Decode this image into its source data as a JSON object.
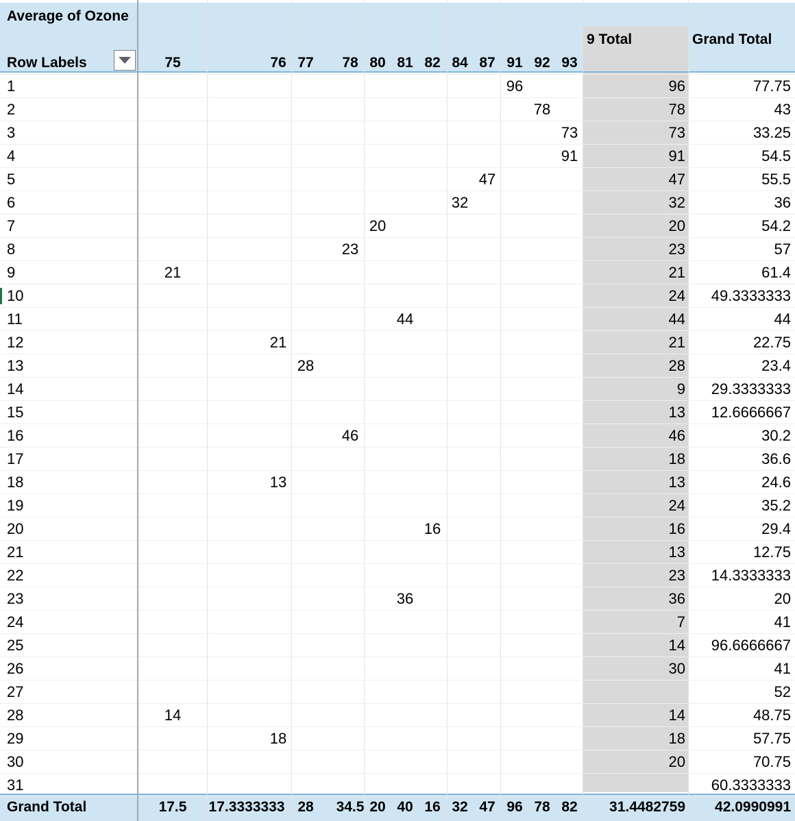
{
  "pivot": {
    "value_field": "Average of Ozone",
    "row_labels": "Row Labels",
    "subtotal_label": "9 Total",
    "grand_total_label": "Grand Total",
    "columns": [
      "75",
      "76",
      "77",
      "78",
      "80",
      "81",
      "82",
      "84",
      "87",
      "91",
      "92",
      "93"
    ],
    "rows": [
      {
        "label": "1",
        "cells": {
          "91": "96"
        },
        "sub": "96",
        "grand": "77.75"
      },
      {
        "label": "2",
        "cells": {
          "92": "78"
        },
        "sub": "78",
        "grand": "43"
      },
      {
        "label": "3",
        "cells": {
          "93": "73"
        },
        "sub": "73",
        "grand": "33.25"
      },
      {
        "label": "4",
        "cells": {
          "93": "91"
        },
        "sub": "91",
        "grand": "54.5"
      },
      {
        "label": "5",
        "cells": {
          "87": "47"
        },
        "sub": "47",
        "grand": "55.5"
      },
      {
        "label": "6",
        "cells": {
          "84": "32"
        },
        "sub": "32",
        "grand": "36"
      },
      {
        "label": "7",
        "cells": {
          "80": "20"
        },
        "sub": "20",
        "grand": "54.2"
      },
      {
        "label": "8",
        "cells": {
          "78": "23"
        },
        "sub": "23",
        "grand": "57"
      },
      {
        "label": "9",
        "cells": {
          "75": "21"
        },
        "sub": "21",
        "grand": "61.4"
      },
      {
        "label": "10",
        "cells": {},
        "sub": "24",
        "grand": "49.3333333"
      },
      {
        "label": "11",
        "cells": {
          "81": "44"
        },
        "sub": "44",
        "grand": "44"
      },
      {
        "label": "12",
        "cells": {
          "76": "21"
        },
        "sub": "21",
        "grand": "22.75"
      },
      {
        "label": "13",
        "cells": {
          "77": "28"
        },
        "sub": "28",
        "grand": "23.4"
      },
      {
        "label": "14",
        "cells": {},
        "sub": "9",
        "grand": "29.3333333"
      },
      {
        "label": "15",
        "cells": {},
        "sub": "13",
        "grand": "12.6666667"
      },
      {
        "label": "16",
        "cells": {
          "78": "46"
        },
        "sub": "46",
        "grand": "30.2"
      },
      {
        "label": "17",
        "cells": {},
        "sub": "18",
        "grand": "36.6"
      },
      {
        "label": "18",
        "cells": {
          "76": "13"
        },
        "sub": "13",
        "grand": "24.6"
      },
      {
        "label": "19",
        "cells": {},
        "sub": "24",
        "grand": "35.2"
      },
      {
        "label": "20",
        "cells": {
          "82": "16"
        },
        "sub": "16",
        "grand": "29.4"
      },
      {
        "label": "21",
        "cells": {},
        "sub": "13",
        "grand": "12.75"
      },
      {
        "label": "22",
        "cells": {},
        "sub": "23",
        "grand": "14.3333333"
      },
      {
        "label": "23",
        "cells": {
          "81": "36"
        },
        "sub": "36",
        "grand": "20"
      },
      {
        "label": "24",
        "cells": {},
        "sub": "7",
        "grand": "41"
      },
      {
        "label": "25",
        "cells": {},
        "sub": "14",
        "grand": "96.6666667"
      },
      {
        "label": "26",
        "cells": {},
        "sub": "30",
        "grand": "41"
      },
      {
        "label": "27",
        "cells": {},
        "sub": "",
        "grand": "52"
      },
      {
        "label": "28",
        "cells": {
          "75": "14"
        },
        "sub": "14",
        "grand": "48.75"
      },
      {
        "label": "29",
        "cells": {
          "76": "18"
        },
        "sub": "18",
        "grand": "57.75"
      },
      {
        "label": "30",
        "cells": {},
        "sub": "20",
        "grand": "70.75"
      },
      {
        "label": "31",
        "cells": {},
        "sub": "",
        "grand": "60.3333333"
      }
    ],
    "grand_row": {
      "label": "Grand Total",
      "cells": {
        "75": "17.5",
        "76": "17.3333333",
        "77": "28",
        "78": "34.5",
        "80": "20",
        "81": "40",
        "82": "16",
        "84": "32",
        "87": "47",
        "91": "96",
        "92": "78",
        "93": "82"
      },
      "sub": "31.4482759",
      "grand": "42.0990991"
    }
  },
  "colors": {
    "header_fill": "#cfe5f3",
    "subtotal_fill": "#d9d9d9",
    "header_border": "#7fb5d9",
    "active_cell_marker": "#217346"
  },
  "icons": {
    "filter": "dropdown-filter-icon"
  }
}
